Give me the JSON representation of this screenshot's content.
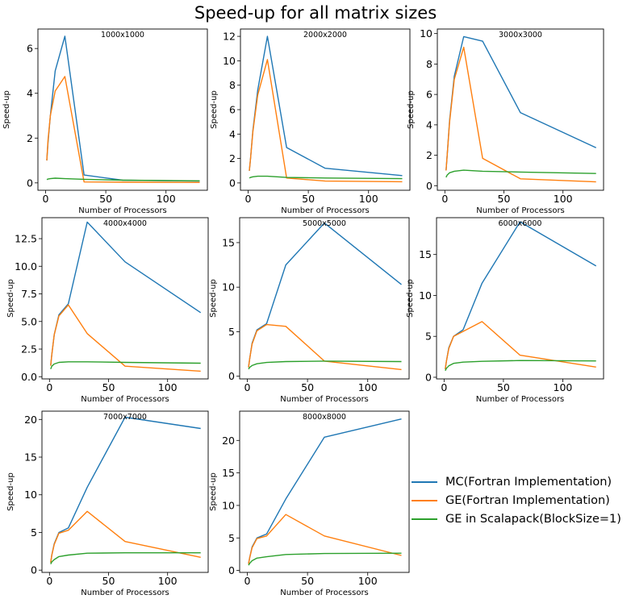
{
  "title": "Speed-up for all matrix sizes",
  "legend": {
    "placement": "bottom-right",
    "items": [
      {
        "label": "MC(Fortran Implementation)",
        "color": "#1f77b4"
      },
      {
        "label": "GE(Fortran Implementation)",
        "color": "#ff7f0e"
      },
      {
        "label": "GE in Scalapack(BlockSize=1)",
        "color": "#2ca02c"
      }
    ]
  },
  "chart_data": [
    {
      "type": "line",
      "title": "1000x1000",
      "xlabel": "Number of Processors",
      "ylabel": "Speed-up",
      "xlim": [
        -6.35,
        134.35
      ],
      "ylim": [
        -0.33,
        6.87
      ],
      "xticks": [
        0,
        50,
        100
      ],
      "yticks": [
        0,
        2,
        4,
        6
      ],
      "ytick_labels": [
        "0",
        "2",
        "4",
        "6"
      ],
      "grid": false,
      "x": [
        1,
        2,
        4,
        8,
        16,
        32,
        64,
        128
      ],
      "series": [
        {
          "name": "MC(Fortran Implementation)",
          "color": "#1f77b4",
          "values": [
            1.0,
            1.8,
            3.0,
            5.0,
            6.55,
            0.35,
            0.12,
            0.08
          ]
        },
        {
          "name": "GE(Fortran Implementation)",
          "color": "#ff7f0e",
          "values": [
            1.0,
            1.9,
            3.0,
            4.1,
            4.75,
            0.04,
            0.03,
            0.02
          ]
        },
        {
          "name": "GE in Scalapack(BlockSize=1)",
          "color": "#2ca02c",
          "values": [
            0.15,
            0.17,
            0.19,
            0.21,
            0.19,
            0.16,
            0.12,
            0.09
          ]
        }
      ]
    },
    {
      "type": "line",
      "title": "2000x2000",
      "xlabel": "Number of Processors",
      "ylabel": "Speed-up",
      "xlim": [
        -6.35,
        134.35
      ],
      "ylim": [
        -0.6,
        12.6
      ],
      "xticks": [
        0,
        50,
        100
      ],
      "yticks": [
        0,
        2,
        4,
        6,
        8,
        10,
        12
      ],
      "ytick_labels": [
        "0",
        "2",
        "4",
        "6",
        "8",
        "10",
        "12"
      ],
      "grid": false,
      "x": [
        1,
        2,
        4,
        8,
        16,
        32,
        64,
        128
      ],
      "series": [
        {
          "name": "MC(Fortran Implementation)",
          "color": "#1f77b4",
          "values": [
            1.0,
            2.0,
            4.3,
            7.6,
            12.0,
            2.9,
            1.2,
            0.6
          ]
        },
        {
          "name": "GE(Fortran Implementation)",
          "color": "#ff7f0e",
          "values": [
            1.0,
            2.0,
            4.2,
            7.2,
            10.1,
            0.4,
            0.15,
            0.1
          ]
        },
        {
          "name": "GE in Scalapack(BlockSize=1)",
          "color": "#2ca02c",
          "values": [
            0.4,
            0.45,
            0.5,
            0.55,
            0.55,
            0.45,
            0.4,
            0.35
          ]
        }
      ]
    },
    {
      "type": "line",
      "title": "3000x3000",
      "xlabel": "Number of Processors",
      "ylabel": "Speed-up",
      "xlim": [
        -6.35,
        134.35
      ],
      "ylim": [
        -0.3,
        10.3
      ],
      "xticks": [
        0,
        50,
        100
      ],
      "yticks": [
        0,
        2,
        4,
        6,
        8,
        10
      ],
      "ytick_labels": [
        "0",
        "2",
        "4",
        "6",
        "8",
        "10"
      ],
      "grid": false,
      "x": [
        1,
        2,
        4,
        8,
        16,
        32,
        64,
        128
      ],
      "series": [
        {
          "name": "MC(Fortran Implementation)",
          "color": "#1f77b4",
          "values": [
            1.0,
            2.0,
            4.3,
            7.2,
            9.8,
            9.5,
            4.8,
            2.5
          ]
        },
        {
          "name": "GE(Fortran Implementation)",
          "color": "#ff7f0e",
          "values": [
            1.0,
            2.0,
            4.2,
            7.0,
            9.1,
            1.8,
            0.45,
            0.25
          ]
        },
        {
          "name": "GE in Scalapack(BlockSize=1)",
          "color": "#2ca02c",
          "values": [
            0.55,
            0.7,
            0.85,
            0.95,
            1.02,
            0.95,
            0.9,
            0.8
          ]
        }
      ]
    },
    {
      "type": "line",
      "title": "4000x4000",
      "xlabel": "Number of Processors",
      "ylabel": "Speed-up",
      "xlim": [
        -6.35,
        134.35
      ],
      "ylim": [
        -0.2,
        14.4
      ],
      "xticks": [
        0,
        50,
        100
      ],
      "yticks": [
        0,
        2.5,
        5,
        7.5,
        10,
        12.5
      ],
      "ytick_labels": [
        "0.0",
        "2.5",
        "5.0",
        "7.5",
        "10.0",
        "12.5"
      ],
      "grid": false,
      "x": [
        1,
        2,
        4,
        8,
        16,
        32,
        64,
        128
      ],
      "series": [
        {
          "name": "MC(Fortran Implementation)",
          "color": "#1f77b4",
          "values": [
            1.0,
            2.0,
            3.8,
            5.6,
            6.6,
            14.0,
            10.4,
            5.8
          ]
        },
        {
          "name": "GE(Fortran Implementation)",
          "color": "#ff7f0e",
          "values": [
            1.0,
            2.0,
            3.8,
            5.5,
            6.5,
            3.9,
            0.95,
            0.5
          ]
        },
        {
          "name": "GE in Scalapack(BlockSize=1)",
          "color": "#2ca02c",
          "values": [
            0.7,
            0.95,
            1.15,
            1.3,
            1.35,
            1.35,
            1.3,
            1.22
          ]
        }
      ]
    },
    {
      "type": "line",
      "title": "5000x5000",
      "xlabel": "Number of Processors",
      "ylabel": "Speed-up",
      "xlim": [
        -6.35,
        134.35
      ],
      "ylim": [
        -0.3,
        17.8
      ],
      "xticks": [
        0,
        50,
        100
      ],
      "yticks": [
        0,
        5,
        10,
        15
      ],
      "ytick_labels": [
        "0",
        "5",
        "10",
        "15"
      ],
      "grid": false,
      "x": [
        1,
        2,
        4,
        8,
        16,
        32,
        64,
        128
      ],
      "series": [
        {
          "name": "MC(Fortran Implementation)",
          "color": "#1f77b4",
          "values": [
            1.0,
            2.0,
            3.7,
            5.2,
            5.9,
            12.5,
            17.2,
            10.3
          ]
        },
        {
          "name": "GE(Fortran Implementation)",
          "color": "#ff7f0e",
          "values": [
            1.0,
            2.0,
            3.6,
            5.1,
            5.8,
            5.6,
            1.7,
            0.75
          ]
        },
        {
          "name": "GE in Scalapack(BlockSize=1)",
          "color": "#2ca02c",
          "values": [
            0.8,
            1.0,
            1.2,
            1.4,
            1.55,
            1.65,
            1.7,
            1.65
          ]
        }
      ]
    },
    {
      "type": "line",
      "title": "6000x6000",
      "xlabel": "Number of Processors",
      "ylabel": "Speed-up",
      "xlim": [
        -6.35,
        134.35
      ],
      "ylim": [
        -0.2,
        19.5
      ],
      "xticks": [
        0,
        50,
        100
      ],
      "yticks": [
        0,
        5,
        10,
        15
      ],
      "ytick_labels": [
        "0",
        "5",
        "10",
        "15"
      ],
      "grid": false,
      "x": [
        1,
        2,
        4,
        8,
        16,
        32,
        64,
        128
      ],
      "series": [
        {
          "name": "MC(Fortran Implementation)",
          "color": "#1f77b4",
          "values": [
            1.0,
            2.0,
            3.6,
            5.0,
            5.8,
            11.5,
            19.0,
            13.6
          ]
        },
        {
          "name": "GE(Fortran Implementation)",
          "color": "#ff7f0e",
          "values": [
            1.0,
            2.0,
            3.5,
            5.0,
            5.6,
            6.8,
            2.7,
            1.25
          ]
        },
        {
          "name": "GE in Scalapack(BlockSize=1)",
          "color": "#2ca02c",
          "values": [
            0.8,
            1.1,
            1.4,
            1.7,
            1.85,
            1.95,
            2.05,
            2.0
          ]
        }
      ]
    },
    {
      "type": "line",
      "title": "7000x7000",
      "xlabel": "Number of Processors",
      "ylabel": "Speed-up",
      "xlim": [
        -6.35,
        134.35
      ],
      "ylim": [
        -0.3,
        21.1
      ],
      "xticks": [
        0,
        50,
        100
      ],
      "yticks": [
        0,
        5,
        10,
        15,
        20
      ],
      "ytick_labels": [
        "0",
        "5",
        "10",
        "15",
        "20"
      ],
      "grid": false,
      "x": [
        1,
        2,
        4,
        8,
        16,
        32,
        64,
        128
      ],
      "series": [
        {
          "name": "MC(Fortran Implementation)",
          "color": "#1f77b4",
          "values": [
            1.0,
            2.0,
            3.5,
            5.0,
            5.6,
            11.0,
            20.3,
            18.8
          ]
        },
        {
          "name": "GE(Fortran Implementation)",
          "color": "#ff7f0e",
          "values": [
            1.0,
            2.0,
            3.4,
            4.9,
            5.3,
            7.8,
            3.8,
            1.7
          ]
        },
        {
          "name": "GE in Scalapack(BlockSize=1)",
          "color": "#2ca02c",
          "values": [
            0.8,
            1.1,
            1.4,
            1.8,
            2.0,
            2.25,
            2.3,
            2.3
          ]
        }
      ]
    },
    {
      "type": "line",
      "title": "8000x8000",
      "xlabel": "Number of Processors",
      "ylabel": "Speed-up",
      "xlim": [
        -6.35,
        134.35
      ],
      "ylim": [
        -0.3,
        24.5
      ],
      "xticks": [
        0,
        50,
        100
      ],
      "yticks": [
        0,
        5,
        10,
        15,
        20
      ],
      "ytick_labels": [
        "0",
        "5",
        "10",
        "15",
        "20"
      ],
      "grid": false,
      "x": [
        1,
        2,
        4,
        8,
        16,
        32,
        64,
        128
      ],
      "series": [
        {
          "name": "MC(Fortran Implementation)",
          "color": "#1f77b4",
          "values": [
            1.0,
            2.0,
            3.6,
            5.0,
            5.6,
            11.0,
            20.5,
            23.3
          ]
        },
        {
          "name": "GE(Fortran Implementation)",
          "color": "#ff7f0e",
          "values": [
            1.0,
            2.0,
            3.5,
            4.9,
            5.3,
            8.6,
            5.3,
            2.3
          ]
        },
        {
          "name": "GE in Scalapack(BlockSize=1)",
          "color": "#2ca02c",
          "values": [
            0.8,
            1.1,
            1.5,
            1.9,
            2.1,
            2.45,
            2.6,
            2.65
          ]
        }
      ]
    }
  ]
}
